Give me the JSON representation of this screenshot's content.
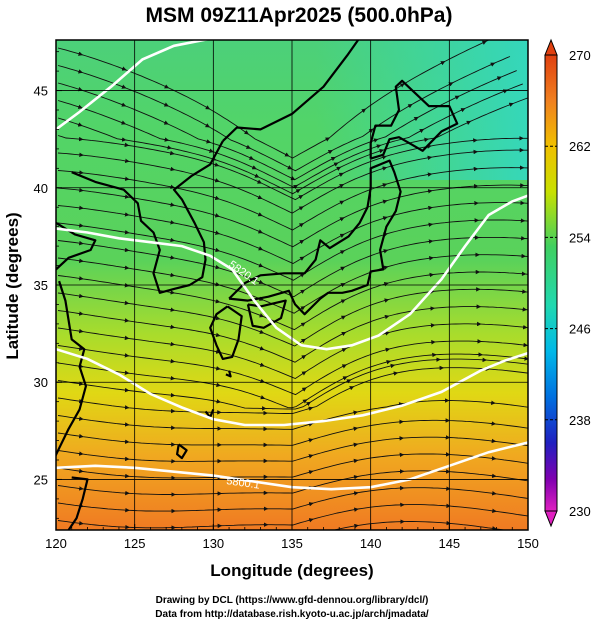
{
  "chart_data": {
    "type": "heatmap",
    "title": "MSM 09Z11Apr2025 (500.0hPa)",
    "xlabel": "Longitude (degrees)",
    "ylabel": "Latitude  (degrees)",
    "xlim": [
      120,
      150
    ],
    "ylim": [
      22.4,
      47.6
    ],
    "xticks": [
      "120",
      "125",
      "130",
      "135",
      "140",
      "145",
      "150"
    ],
    "yticks": [
      "25",
      "30",
      "35",
      "40",
      "45"
    ],
    "grid": true,
    "colorbar": {
      "min": 230,
      "max": 270,
      "ticks": [
        "270",
        "262",
        "254",
        "246",
        "238",
        "230"
      ],
      "colors": [
        "#e020c0",
        "#8000b0",
        "#2020c0",
        "#0070e0",
        "#00b8e8",
        "#20d8b0",
        "#40d060",
        "#70d830",
        "#c8e000",
        "#f0c000",
        "#f08020",
        "#e04010"
      ]
    },
    "contour_labels": [
      "5820.1",
      "5800.1"
    ],
    "credits": [
      "Drawing by DCL (https://www.gfd-dennou.org/library/dcl/)",
      "Data from http://database.rish.kyoto-u.ac.jp/arch/jmadata/"
    ]
  }
}
